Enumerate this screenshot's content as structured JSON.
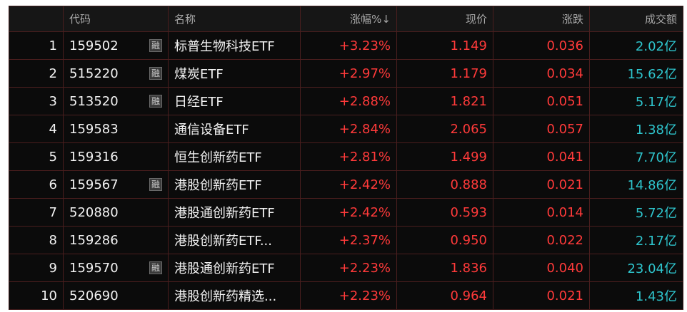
{
  "table": {
    "headers": [
      "代码",
      "名称",
      "涨幅%↓",
      "现价",
      "涨跌",
      "成交额"
    ],
    "rows": [
      {
        "rank": 1,
        "code": "159502",
        "badge": "融",
        "name": "标普生物科技ETF",
        "change_pct": "+3.23%",
        "price": "1.149",
        "change": "0.036",
        "turnover": "2.02亿"
      },
      {
        "rank": 2,
        "code": "515220",
        "badge": "融",
        "name": "煤炭ETF",
        "change_pct": "+2.97%",
        "price": "1.179",
        "change": "0.034",
        "turnover": "15.62亿"
      },
      {
        "rank": 3,
        "code": "513520",
        "badge": "融",
        "name": "日经ETF",
        "change_pct": "+2.88%",
        "price": "1.821",
        "change": "0.051",
        "turnover": "5.17亿"
      },
      {
        "rank": 4,
        "code": "159583",
        "name": "通信设备ETF",
        "change_pct": "+2.84%",
        "price": "2.065",
        "change": "0.057",
        "turnover": "1.38亿"
      },
      {
        "rank": 5,
        "code": "159316",
        "name": "恒生创新药ETF",
        "change_pct": "+2.81%",
        "price": "1.499",
        "change": "0.041",
        "turnover": "7.70亿"
      },
      {
        "rank": 6,
        "code": "159567",
        "badge": "融",
        "name": "港股创新药ETF",
        "change_pct": "+2.42%",
        "price": "0.888",
        "change": "0.021",
        "turnover": "14.86亿"
      },
      {
        "rank": 7,
        "code": "520880",
        "name": "港股通创新药ETF",
        "change_pct": "+2.42%",
        "price": "0.593",
        "change": "0.014",
        "turnover": "5.72亿"
      },
      {
        "rank": 8,
        "code": "159286",
        "name": "港股创新药ETF...",
        "change_pct": "+2.37%",
        "price": "0.950",
        "change": "0.022",
        "turnover": "2.17亿"
      },
      {
        "rank": 9,
        "code": "159570",
        "badge": "融",
        "name": "港股通创新药ETF",
        "change_pct": "+2.23%",
        "price": "1.836",
        "change": "0.040",
        "turnover": "23.04亿"
      },
      {
        "rank": 10,
        "code": "520690",
        "name": "港股创新药精选...",
        "change_pct": "+2.23%",
        "price": "0.964",
        "change": "0.021",
        "turnover": "1.43亿"
      }
    ]
  }
}
